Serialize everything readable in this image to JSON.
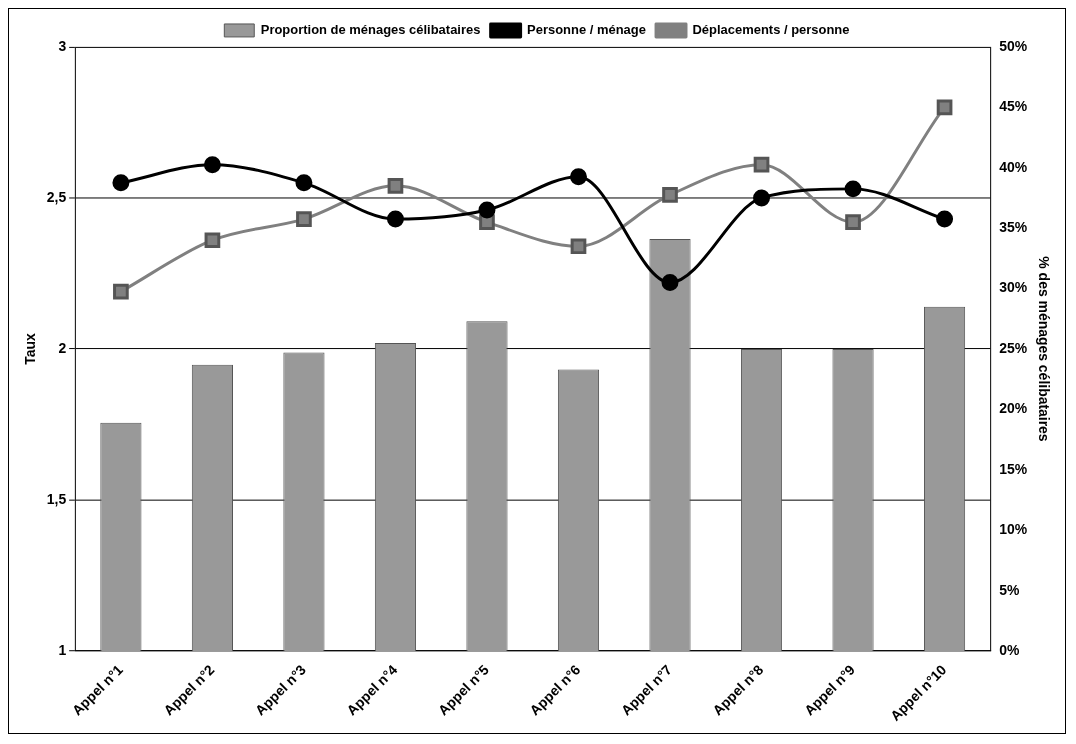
{
  "chart_data": {
    "type": "bar",
    "categories": [
      "Appel n°1",
      "Appel n°2",
      "Appel n°3",
      "Appel n°4",
      "Appel n°5",
      "Appel n°6",
      "Appel n°7",
      "Appel n°8",
      "Appel n°9",
      "Appel n°10"
    ],
    "series": [
      {
        "name": "Proportion de ménages célibataires",
        "type": "bar",
        "axis": "y2",
        "color": "#999999",
        "values": [
          18.9,
          23.7,
          24.7,
          25.5,
          27.3,
          23.3,
          34.1,
          25,
          25,
          28.5
        ]
      },
      {
        "name": "Personne / ménage",
        "type": "line",
        "color": "#000000",
        "marker": "circle",
        "values": [
          2.55,
          2.61,
          2.55,
          2.43,
          2.46,
          2.57,
          2.22,
          2.5,
          2.53,
          2.43
        ]
      },
      {
        "name": "Déplacements / personne",
        "type": "line",
        "color": "#808080",
        "marker": "square",
        "values": [
          2.19,
          2.36,
          2.43,
          2.54,
          2.42,
          2.34,
          2.51,
          2.61,
          2.42,
          2.8
        ]
      }
    ],
    "ylabel": "Taux",
    "y2label": "% des ménages célibataires",
    "ylim": [
      1,
      3
    ],
    "yticks": [
      1,
      {
        "value": 1.5,
        "label": "1,5"
      },
      2,
      {
        "value": 2.5,
        "label": "2,5"
      },
      3
    ],
    "y2lim": [
      0,
      50
    ],
    "y2ticks": [
      {
        "value": 0,
        "label": "0%"
      },
      {
        "value": 5,
        "label": "5%"
      },
      {
        "value": 10,
        "label": "10%"
      },
      {
        "value": 15,
        "label": "15%"
      },
      {
        "value": 20,
        "label": "20%"
      },
      {
        "value": 25,
        "label": "25%"
      },
      {
        "value": 30,
        "label": "30%"
      },
      {
        "value": 35,
        "label": "35%"
      },
      {
        "value": 40,
        "label": "40%"
      },
      {
        "value": 45,
        "label": "45%"
      },
      {
        "value": 50,
        "label": "50%"
      }
    ],
    "grid": "y",
    "legend": "top"
  }
}
